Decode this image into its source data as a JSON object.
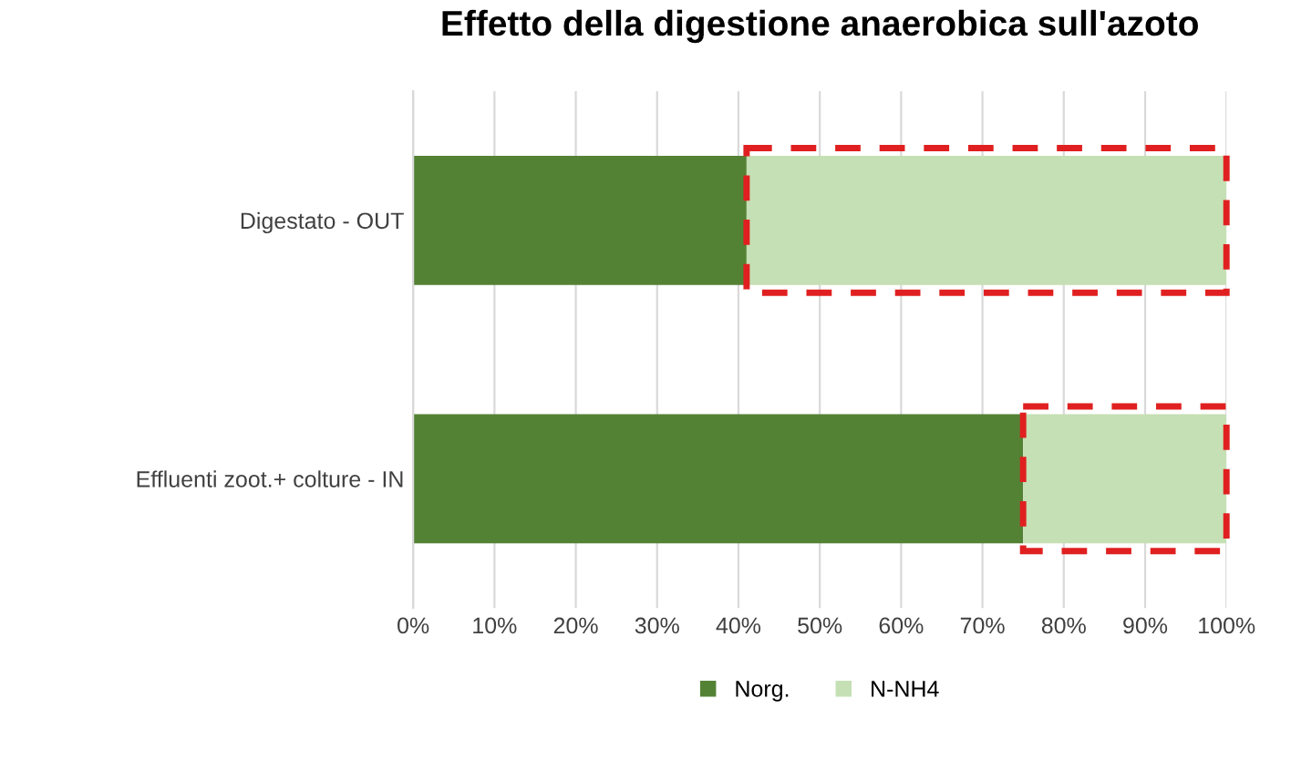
{
  "chart_data": {
    "type": "bar",
    "orientation": "horizontal",
    "stacked": true,
    "title": "Effetto della digestione anaerobica sull'azoto",
    "categories": [
      "Digestato - OUT",
      "Effluenti zoot.+ colture - IN"
    ],
    "series": [
      {
        "name": "Norg.",
        "color": "#548235",
        "values": [
          41,
          75
        ]
      },
      {
        "name": "N-NH4",
        "color": "#c5e0b4",
        "values": [
          59,
          25
        ]
      }
    ],
    "xlim": [
      0,
      100
    ],
    "xticks": [
      {
        "value": 0,
        "label": "0%"
      },
      {
        "value": 10,
        "label": "10%"
      },
      {
        "value": 20,
        "label": "20%"
      },
      {
        "value": 30,
        "label": "30%"
      },
      {
        "value": 40,
        "label": "40%"
      },
      {
        "value": 50,
        "label": "50%"
      },
      {
        "value": 60,
        "label": "60%"
      },
      {
        "value": 70,
        "label": "70%"
      },
      {
        "value": 80,
        "label": "80%"
      },
      {
        "value": 90,
        "label": "90%"
      },
      {
        "value": 100,
        "label": "100%"
      }
    ],
    "grid": "x",
    "legend": "bottom"
  }
}
